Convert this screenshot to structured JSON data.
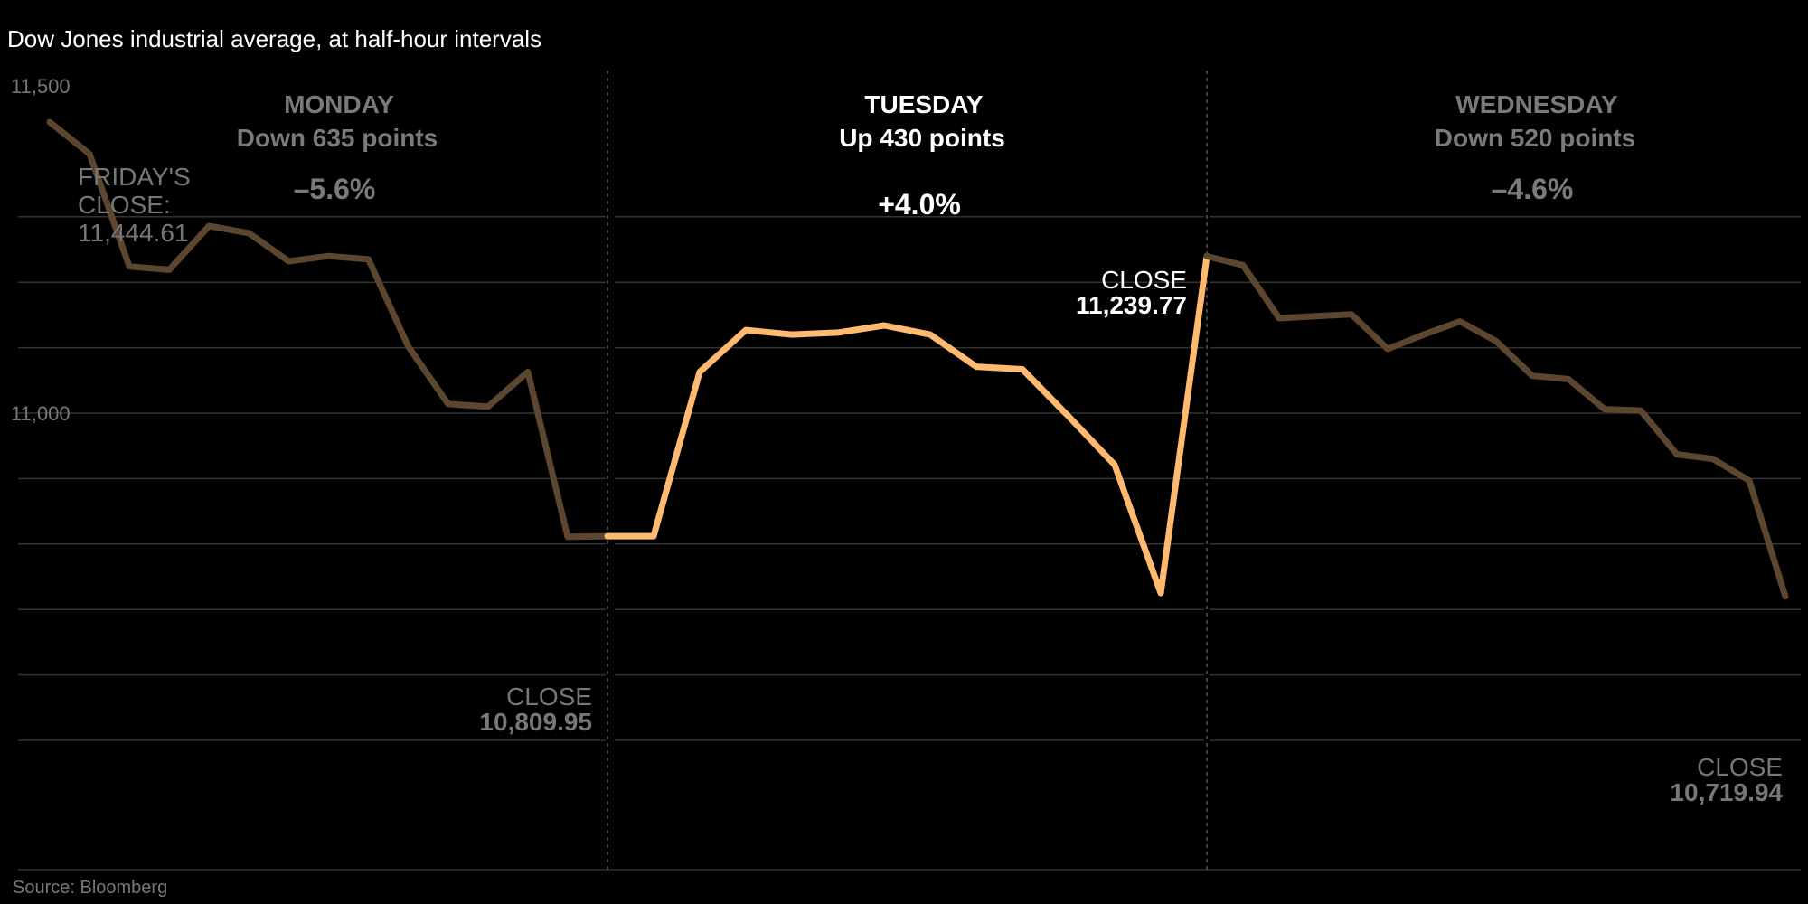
{
  "chart_data": {
    "type": "line",
    "title": "Dow Jones industrial average, at half-hour intervals",
    "source": "Source: Bloomberg",
    "yticks": [
      {
        "value": 11500,
        "label": "11,500"
      },
      {
        "value": 11000,
        "label": "11,000"
      }
    ],
    "ylim": [
      10500,
      11530
    ],
    "grid": true,
    "days": [
      {
        "name": "MONDAY",
        "change": "Down 635 points",
        "percent": "–5.6%",
        "highlight": false,
        "color": "#5c4630",
        "text_color": "#7a7a7a",
        "values": [
          11444.61,
          11396,
          11224,
          11219,
          11286,
          11275,
          11232,
          11240,
          11235,
          11102,
          11014,
          11010,
          11063,
          10811,
          10812
        ],
        "close_label": "CLOSE",
        "close_value": "10,809.95"
      },
      {
        "name": "TUESDAY",
        "change": "Up 430 points",
        "percent": "+4.0%",
        "highlight": true,
        "color": "#ffba70",
        "text_color": "#ffffff",
        "values": [
          10812,
          10812,
          11063,
          11127,
          11120,
          11123,
          11134,
          11120,
          11071,
          11067,
          10995,
          10921,
          10725,
          11239.77
        ],
        "close_label": "CLOSE",
        "close_value": "11,239.77"
      },
      {
        "name": "WEDNESDAY",
        "change": "Down 520 points",
        "percent": "–4.6%",
        "highlight": false,
        "color": "#5c4630",
        "text_color": "#7a7a7a",
        "values": [
          11239.77,
          11226,
          11145,
          11148,
          11151,
          11098,
          11120,
          11140,
          11110,
          11057,
          11052,
          11006,
          11004,
          10937,
          10930,
          10897,
          10719.94
        ],
        "close_label": "CLOSE",
        "close_value": "10,719.94"
      }
    ],
    "fridays_close_note": [
      "FRIDAY'S",
      "CLOSE:",
      "11,444.61"
    ]
  }
}
